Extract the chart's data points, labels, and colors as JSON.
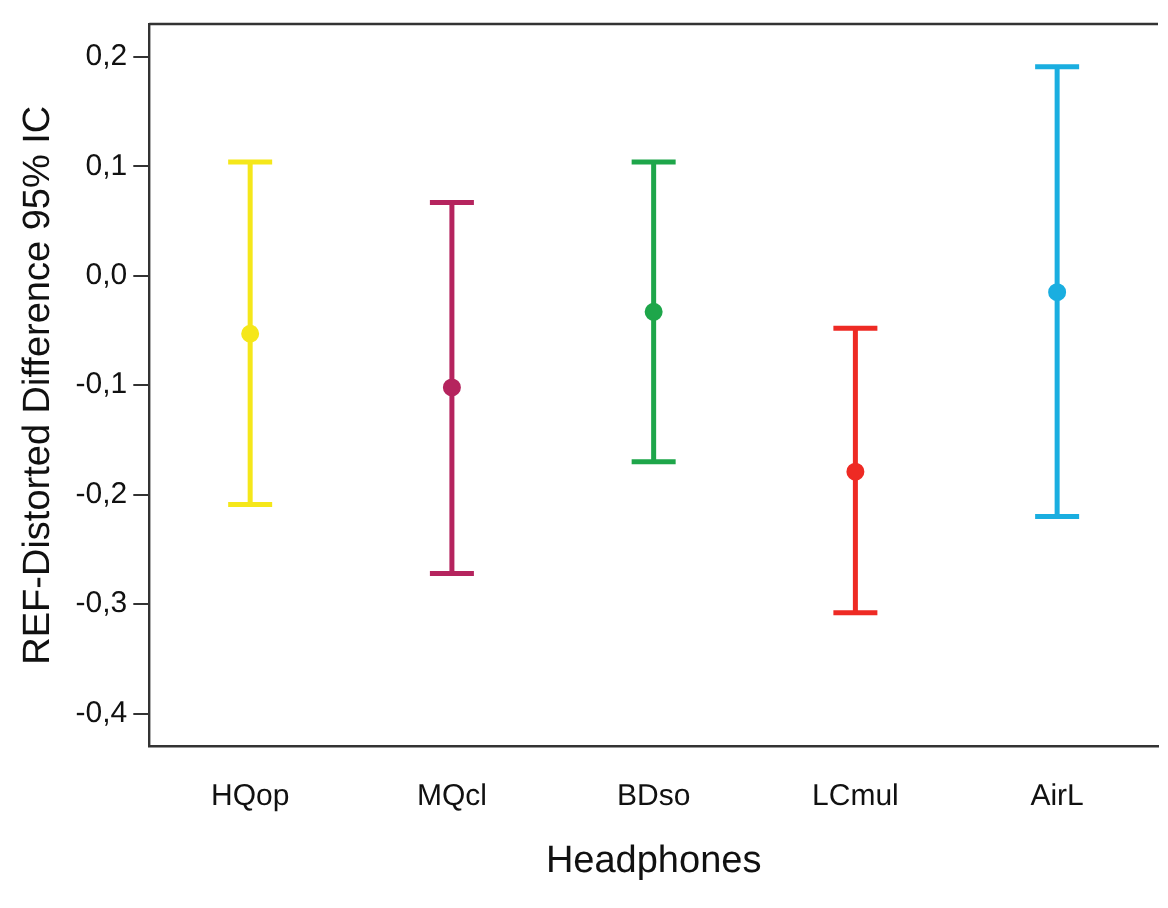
{
  "chart_data": {
    "type": "scatter",
    "xlabel": "Headphones",
    "ylabel": "REF-Distorted Difference 95% IC",
    "categories": [
      "HQop",
      "MQcl",
      "BDso",
      "LCmul",
      "AirL"
    ],
    "values": [
      -0.053,
      -0.102,
      -0.033,
      -0.179,
      -0.015
    ],
    "errors": [
      [
        -0.209,
        0.104
      ],
      [
        -0.272,
        0.067
      ],
      [
        -0.17,
        0.104
      ],
      [
        -0.308,
        -0.048
      ],
      [
        -0.22,
        0.191
      ]
    ],
    "colors": [
      "#f5e71a",
      "#b5245e",
      "#1ea64a",
      "#ee2a24",
      "#1aaee0"
    ],
    "ylim": [
      -0.43,
      0.23
    ],
    "yticks": [
      {
        "value": -0.4,
        "label": "-0,4"
      },
      {
        "value": -0.3,
        "label": "-0,3"
      },
      {
        "value": -0.2,
        "label": "-0,2"
      },
      {
        "value": -0.1,
        "label": "-0,1"
      },
      {
        "value": 0,
        "label": "0,0"
      },
      {
        "value": 0.1,
        "label": "0,1"
      },
      {
        "value": 0.2,
        "label": "0,2"
      }
    ],
    "grid": false,
    "legend": false,
    "marker": "circle"
  }
}
